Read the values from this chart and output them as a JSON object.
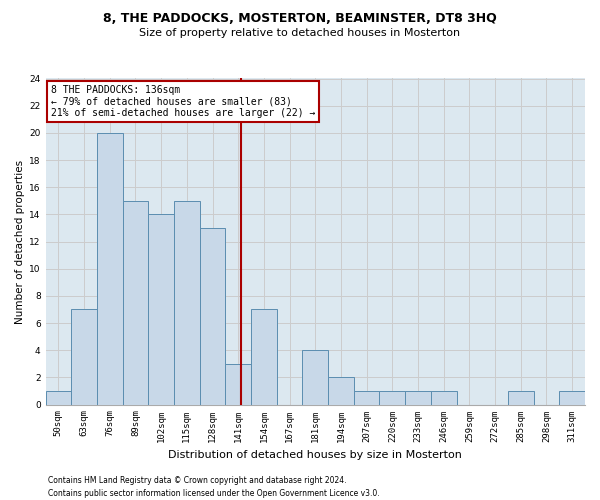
{
  "title": "8, THE PADDOCKS, MOSTERTON, BEAMINSTER, DT8 3HQ",
  "subtitle": "Size of property relative to detached houses in Mosterton",
  "xlabel": "Distribution of detached houses by size in Mosterton",
  "ylabel": "Number of detached properties",
  "bar_labels": [
    "50sqm",
    "63sqm",
    "76sqm",
    "89sqm",
    "102sqm",
    "115sqm",
    "128sqm",
    "141sqm",
    "154sqm",
    "167sqm",
    "181sqm",
    "194sqm",
    "207sqm",
    "220sqm",
    "233sqm",
    "246sqm",
    "259sqm",
    "272sqm",
    "285sqm",
    "298sqm",
    "311sqm"
  ],
  "bar_values": [
    1,
    7,
    20,
    15,
    14,
    15,
    13,
    3,
    7,
    0,
    4,
    2,
    1,
    1,
    1,
    1,
    0,
    0,
    1,
    0,
    1
  ],
  "bar_color": "#c8d8e8",
  "bar_edge_color": "#5b8db0",
  "ylim": [
    0,
    24
  ],
  "yticks": [
    0,
    2,
    4,
    6,
    8,
    10,
    12,
    14,
    16,
    18,
    20,
    22,
    24
  ],
  "vline_color": "#aa0000",
  "annotation_text": "8 THE PADDOCKS: 136sqm\n← 79% of detached houses are smaller (83)\n21% of semi-detached houses are larger (22) →",
  "annotation_box_color": "#ffffff",
  "annotation_box_edge": "#aa0000",
  "footnote1": "Contains HM Land Registry data © Crown copyright and database right 2024.",
  "footnote2": "Contains public sector information licensed under the Open Government Licence v3.0.",
  "grid_color": "#cccccc",
  "bg_color": "#dce8f0",
  "title_fontsize": 9,
  "subtitle_fontsize": 8,
  "ylabel_fontsize": 7.5,
  "xlabel_fontsize": 8,
  "tick_fontsize": 6.5,
  "annot_fontsize": 7
}
